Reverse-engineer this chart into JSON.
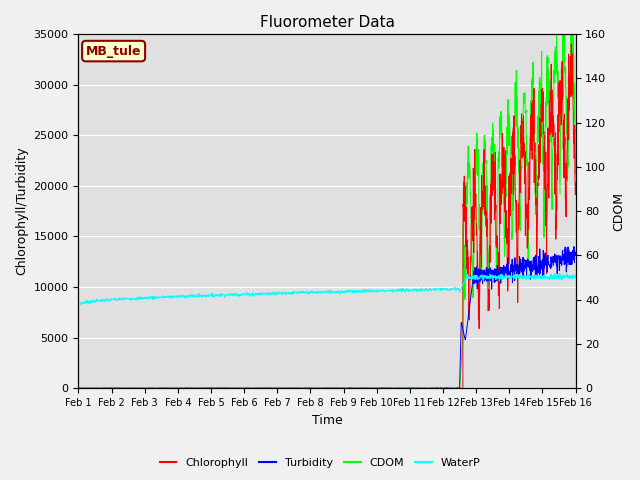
{
  "title": "Fluorometer Data",
  "xlabel": "Time",
  "ylabel_left": "Chlorophyll/Turbidity",
  "ylabel_right": "CDOM",
  "annotation": "MB_tule",
  "annotation_color": "#8B0000",
  "annotation_bg": "#FFFFCC",
  "xlim": [
    0,
    15
  ],
  "ylim_left": [
    0,
    35000
  ],
  "ylim_right": [
    0,
    160
  ],
  "xtick_labels": [
    "Feb 1",
    "Feb 2",
    "Feb 3",
    "Feb 4",
    "Feb 5",
    "Feb 6",
    "Feb 7",
    "Feb 8",
    "Feb 9",
    "Feb 10",
    "Feb 11",
    "Feb 12",
    "Feb 13",
    "Feb 14",
    "Feb 15",
    "Feb 16"
  ],
  "ytick_left": [
    0,
    5000,
    10000,
    15000,
    20000,
    25000,
    30000,
    35000
  ],
  "ytick_right": [
    0,
    20,
    40,
    60,
    80,
    100,
    120,
    140,
    160
  ],
  "legend_entries": [
    "Chlorophyll",
    "Turbidity",
    "CDOM",
    "WaterP"
  ],
  "legend_colors": [
    "red",
    "blue",
    "lime",
    "cyan"
  ],
  "bg_color": "#F0F0F0",
  "plot_bg_color": "#E0E0E0",
  "grid_color": "white"
}
